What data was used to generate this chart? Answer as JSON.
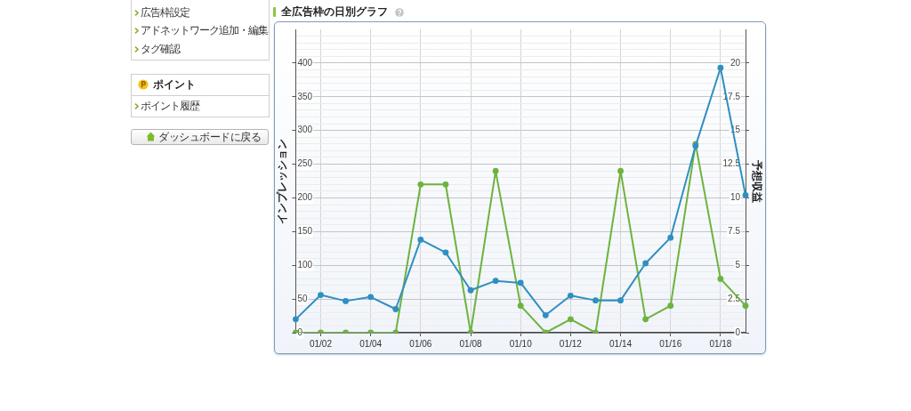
{
  "chart_data": {
    "type": "line",
    "title": "全広告枠の日別グラフ",
    "ylabel": "インプレッション",
    "y2label": "予想収益",
    "categories": [
      null,
      "01/02",
      null,
      "01/04",
      null,
      "01/06",
      null,
      "01/08",
      null,
      "01/10",
      null,
      "01/12",
      null,
      "01/14",
      null,
      "01/16",
      null,
      "01/18",
      null
    ],
    "series": [
      {
        "color": "#2f8fc0",
        "values": [
          20,
          56,
          47,
          53,
          35,
          138,
          119,
          63,
          77,
          74,
          26,
          55,
          48,
          48,
          103,
          141,
          277,
          393,
          204
        ]
      },
      {
        "color": "#6db33f",
        "axis": "y2",
        "values": [
          0,
          0,
          0,
          0,
          0,
          11,
          11,
          0,
          12,
          2,
          0,
          1,
          0,
          12,
          1,
          2,
          14,
          4,
          2
        ]
      }
    ],
    "ylim": [
      0,
      450
    ],
    "yticks": [
      0,
      {
        "value": 10,
        "label": null
      },
      {
        "value": 20,
        "label": null
      },
      {
        "value": 30,
        "label": null
      },
      {
        "value": 40,
        "label": null
      },
      50,
      {
        "value": 60,
        "label": null
      },
      {
        "value": 70,
        "label": null
      },
      {
        "value": 80,
        "label": null
      },
      {
        "value": 90,
        "label": null
      },
      100,
      {
        "value": 110,
        "label": null
      },
      {
        "value": 120,
        "label": null
      },
      {
        "value": 130,
        "label": null
      },
      {
        "value": 140,
        "label": null
      },
      150,
      {
        "value": 160,
        "label": null
      },
      {
        "value": 170,
        "label": null
      },
      {
        "value": 180,
        "label": null
      },
      {
        "value": 190,
        "label": null
      },
      200,
      {
        "value": 210,
        "label": null
      },
      {
        "value": 220,
        "label": null
      },
      {
        "value": 230,
        "label": null
      },
      {
        "value": 240,
        "label": null
      },
      250,
      {
        "value": 260,
        "label": null
      },
      {
        "value": 270,
        "label": null
      },
      {
        "value": 280,
        "label": null
      },
      {
        "value": 290,
        "label": null
      },
      300,
      {
        "value": 310,
        "label": null
      },
      {
        "value": 320,
        "label": null
      },
      {
        "value": 330,
        "label": null
      },
      {
        "value": 340,
        "label": null
      },
      350,
      {
        "value": 360,
        "label": null
      },
      {
        "value": 370,
        "label": null
      },
      {
        "value": 380,
        "label": null
      },
      {
        "value": 390,
        "label": null
      },
      400,
      {
        "value": 410,
        "label": null
      },
      {
        "value": 420,
        "label": null
      },
      {
        "value": 430,
        "label": null
      },
      {
        "value": 440,
        "label": null
      }
    ],
    "y2lim": [
      0,
      22.5
    ],
    "y2ticks": [
      0,
      2.5,
      5,
      7.5,
      10,
      12.5,
      15,
      17.5,
      20
    ],
    "grid": true,
    "marker": "circle",
    "annotations": [
      "広告枠設定",
      "アドネットワーク追加・編集",
      "タグ確認",
      "ポイント",
      "ポイント履歴",
      "ダッシュボードに戻る"
    ]
  }
}
